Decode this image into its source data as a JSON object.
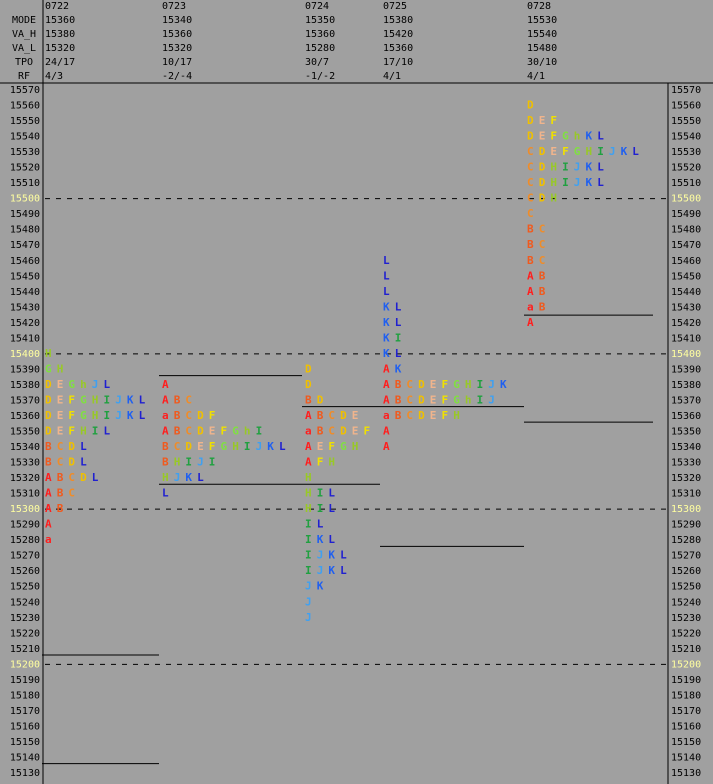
{
  "header": {
    "labels": [
      "MODE",
      "VA_H",
      "VA_L",
      "TPO",
      "RF"
    ]
  },
  "days": [
    {
      "date": "0722",
      "mode": 15360,
      "va_h": 15380,
      "va_l": 15320,
      "tpo": "24/17",
      "rf": "4/3",
      "rows": [
        {
          "price": 15400,
          "tpo": "H"
        },
        {
          "price": 15390,
          "tpo": "GH"
        },
        {
          "price": 15380,
          "tpo": "DEGhJL"
        },
        {
          "price": 15370,
          "tpo": "DEFGHIJKL"
        },
        {
          "price": 15360,
          "tpo": "DEFGHIJKL"
        },
        {
          "price": 15350,
          "tpo": "DEFHIL"
        },
        {
          "price": 15340,
          "tpo": "BCDL"
        },
        {
          "price": 15330,
          "tpo": "BCDL"
        },
        {
          "price": 15320,
          "tpo": "ABCDL"
        },
        {
          "price": 15310,
          "tpo": "ABC"
        },
        {
          "price": 15300,
          "tpo": "AB"
        },
        {
          "price": 15290,
          "tpo": "A"
        },
        {
          "price": 15280,
          "tpo": "a"
        }
      ],
      "lines": [
        15206,
        15136
      ]
    },
    {
      "date": "0723",
      "mode": 15340,
      "va_h": 15360,
      "va_l": 15320,
      "tpo": "10/17",
      "rf": "-2/-4",
      "rows": [
        {
          "price": 15380,
          "tpo": "A"
        },
        {
          "price": 15370,
          "tpo": "ABC"
        },
        {
          "price": 15360,
          "tpo": "aBCDF"
        },
        {
          "price": 15350,
          "tpo": "ABCDEFGhI"
        },
        {
          "price": 15340,
          "tpo": "BCDEFGHIJKL"
        },
        {
          "price": 15330,
          "tpo": "BHIJI"
        },
        {
          "price": 15320,
          "tpo": "HJKL"
        },
        {
          "price": 15310,
          "tpo": "L"
        }
      ],
      "lines": [
        15386,
        15316
      ]
    },
    {
      "date": "0724",
      "mode": 15350,
      "va_h": 15360,
      "va_l": 15280,
      "tpo": "30/7",
      "rf": "-1/-2",
      "rows": [
        {
          "price": 15390,
          "tpo": "D"
        },
        {
          "price": 15380,
          "tpo": "D"
        },
        {
          "price": 15370,
          "tpo": "BD"
        },
        {
          "price": 15360,
          "tpo": "ABCDE"
        },
        {
          "price": 15350,
          "tpo": "aBCDEF"
        },
        {
          "price": 15340,
          "tpo": "AEFGH"
        },
        {
          "price": 15330,
          "tpo": "AFH"
        },
        {
          "price": 15320,
          "tpo": "H"
        },
        {
          "price": 15310,
          "tpo": "HIL"
        },
        {
          "price": 15300,
          "tpo": "HIL"
        },
        {
          "price": 15290,
          "tpo": "IL"
        },
        {
          "price": 15280,
          "tpo": "IKL"
        },
        {
          "price": 15270,
          "tpo": "IJKL"
        },
        {
          "price": 15260,
          "tpo": "IJKL"
        },
        {
          "price": 15250,
          "tpo": "JK"
        },
        {
          "price": 15240,
          "tpo": "J"
        },
        {
          "price": 15230,
          "tpo": "J"
        }
      ],
      "lines": [
        15366,
        15316
      ]
    },
    {
      "date": "0725",
      "mode": 15380,
      "va_h": 15420,
      "va_l": 15360,
      "tpo": "17/10",
      "rf": "4/1",
      "rows": [
        {
          "price": 15460,
          "tpo": "L"
        },
        {
          "price": 15450,
          "tpo": "L"
        },
        {
          "price": 15440,
          "tpo": "L"
        },
        {
          "price": 15430,
          "tpo": "KL"
        },
        {
          "price": 15420,
          "tpo": "KL"
        },
        {
          "price": 15410,
          "tpo": "KI"
        },
        {
          "price": 15400,
          "tpo": "KL"
        },
        {
          "price": 15390,
          "tpo": "AK"
        },
        {
          "price": 15380,
          "tpo": "ABCDEFGHIJK"
        },
        {
          "price": 15370,
          "tpo": "ABCDEFGhIJ"
        },
        {
          "price": 15360,
          "tpo": "aBCDEFH"
        },
        {
          "price": 15350,
          "tpo": "A"
        },
        {
          "price": 15340,
          "tpo": "A"
        }
      ],
      "lines": [
        15366,
        15276
      ]
    },
    {
      "date": "0728",
      "mode": 15530,
      "va_h": 15540,
      "va_l": 15480,
      "tpo": "30/10",
      "rf": "4/1",
      "rows": [
        {
          "price": 15560,
          "tpo": "D"
        },
        {
          "price": 15550,
          "tpo": "DEF"
        },
        {
          "price": 15540,
          "tpo": "DEFGhKL"
        },
        {
          "price": 15530,
          "tpo": "CDEFGHIJKL"
        },
        {
          "price": 15520,
          "tpo": "CDHIJKL"
        },
        {
          "price": 15510,
          "tpo": "CDHIJKL"
        },
        {
          "price": 15500,
          "tpo": "CDH"
        },
        {
          "price": 15490,
          "tpo": "C"
        },
        {
          "price": 15480,
          "tpo": "BC"
        },
        {
          "price": 15470,
          "tpo": "BC"
        },
        {
          "price": 15460,
          "tpo": "BC"
        },
        {
          "price": 15450,
          "tpo": "AB"
        },
        {
          "price": 15440,
          "tpo": "AB"
        },
        {
          "price": 15430,
          "tpo": "aB"
        },
        {
          "price": 15420,
          "tpo": "A"
        }
      ],
      "lines": [
        15425,
        15356
      ]
    }
  ],
  "price_axis": {
    "ylim": [
      15570,
      15130
    ],
    "ticks": [
      15570,
      15560,
      15550,
      15540,
      15530,
      15520,
      15510,
      15500,
      15490,
      15480,
      15470,
      15460,
      15450,
      15440,
      15430,
      15420,
      15410,
      15400,
      15390,
      15380,
      15370,
      15360,
      15350,
      15340,
      15330,
      15320,
      15310,
      15300,
      15290,
      15280,
      15270,
      15260,
      15250,
      15240,
      15230,
      15220,
      15210,
      15200,
      15190,
      15180,
      15170,
      15160,
      15150,
      15140,
      15130
    ],
    "dashed_levels": [
      15500,
      15400,
      15300,
      15200
    ]
  },
  "letter_colors": {
    "A": "#ff1e1e",
    "a": "#ff1e1e",
    "B": "#f05a1e",
    "C": "#f08c28",
    "D": "#f0c000",
    "E": "#f0b48c",
    "F": "#f0e000",
    "G": "#80e040",
    "H": "#98c828",
    "h": "#98c828",
    "I": "#20a040",
    "J": "#40a0f0",
    "K": "#2060f0",
    "L": "#2020d0"
  }
}
